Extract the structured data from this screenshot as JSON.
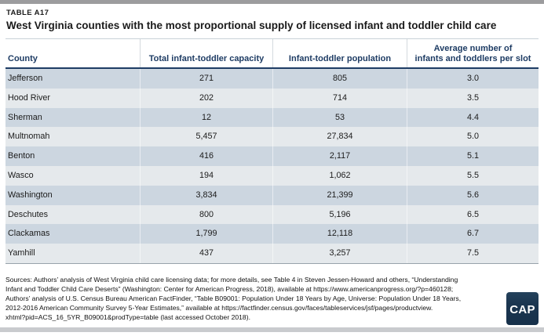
{
  "page": {
    "label": "TABLE A17",
    "title": "West Virginia counties with the most proportional supply of licensed infant and toddler child care"
  },
  "table": {
    "columns": [
      "County",
      "Total infant-toddler capacity",
      "Infant-toddler population",
      "Average number of\ninfants and toddlers per slot"
    ],
    "rows": [
      {
        "county": "Jefferson",
        "capacity": "271",
        "population": "805",
        "avg_per_slot": "3.0"
      },
      {
        "county": "Hood River",
        "capacity": "202",
        "population": "714",
        "avg_per_slot": "3.5"
      },
      {
        "county": "Sherman",
        "capacity": "12",
        "population": "53",
        "avg_per_slot": "4.4"
      },
      {
        "county": "Multnomah",
        "capacity": "5,457",
        "population": "27,834",
        "avg_per_slot": "5.0"
      },
      {
        "county": "Benton",
        "capacity": "416",
        "population": "2,117",
        "avg_per_slot": "5.1"
      },
      {
        "county": "Wasco",
        "capacity": "194",
        "population": "1,062",
        "avg_per_slot": "5.5"
      },
      {
        "county": "Washington",
        "capacity": "3,834",
        "population": "21,399",
        "avg_per_slot": "5.6"
      },
      {
        "county": "Deschutes",
        "capacity": "800",
        "population": "5,196",
        "avg_per_slot": "6.5"
      },
      {
        "county": "Clackamas",
        "capacity": "1,799",
        "population": "12,118",
        "avg_per_slot": "6.7"
      },
      {
        "county": "Yamhill",
        "capacity": "437",
        "population": "3,257",
        "avg_per_slot": "7.5"
      }
    ]
  },
  "footer": {
    "sources_text": "Sources: Authors’ analysis of West Virginia child care licensing data; for more details, see Table 4 in Steven Jessen-Howard and others, “Understanding\nInfant and Toddler Child Care Deserts” (Washington: Center for American Progress, 2018), available at https://www.americanprogress.org/?p=460128;\nAuthors’ analysis of U.S. Census Bureau American FactFinder, “Table B09001: Population Under 18 Years by Age, Universe: Population Under 18 Years,\n2012-2016 American Community Survey 5-Year Estimates,” available at https://factfinder.census.gov/faces/tableservices/jsf/pages/productview.\nxhtml?pid=ACS_16_5YR_B09001&prodType=table (last accessed October 2018).",
    "logo_text": "CAP"
  },
  "colors": {
    "header_navy": "#1e3c64",
    "row_dark": "#ccd6e0",
    "row_light": "#e5e9ec",
    "top_bar": "#9c9c9e",
    "bottom_bar": "#c9cbce",
    "logo_navy": "#16304a"
  }
}
